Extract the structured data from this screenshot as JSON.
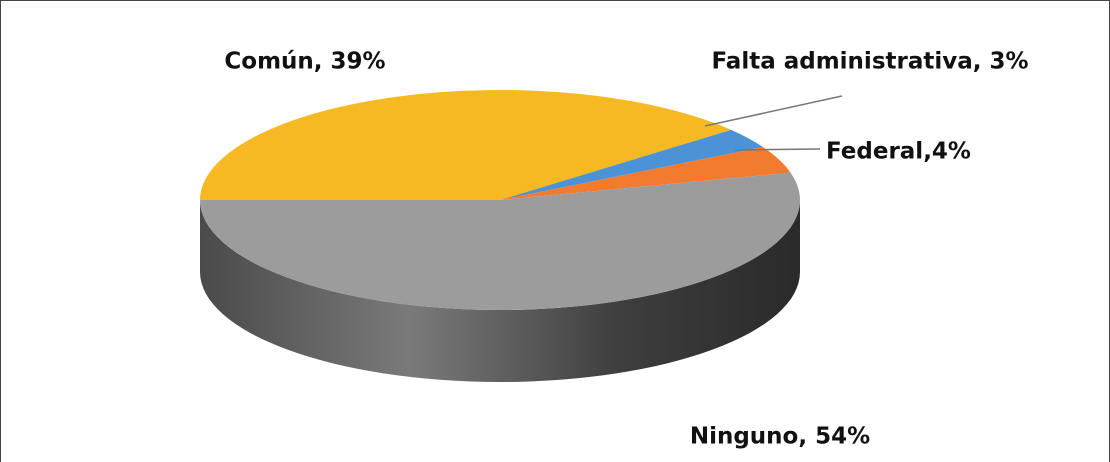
{
  "chart_data": {
    "type": "pie3d",
    "values": [
      39,
      3,
      4,
      54
    ],
    "value_labels": [
      "Común, 39%",
      "Falta administrativa, 3%",
      "Federal,4%",
      "Ninguno, 54%"
    ],
    "colors": [
      "#f6b922",
      "#4b93d6",
      "#f27b2f",
      "#9c9c9c"
    ]
  }
}
